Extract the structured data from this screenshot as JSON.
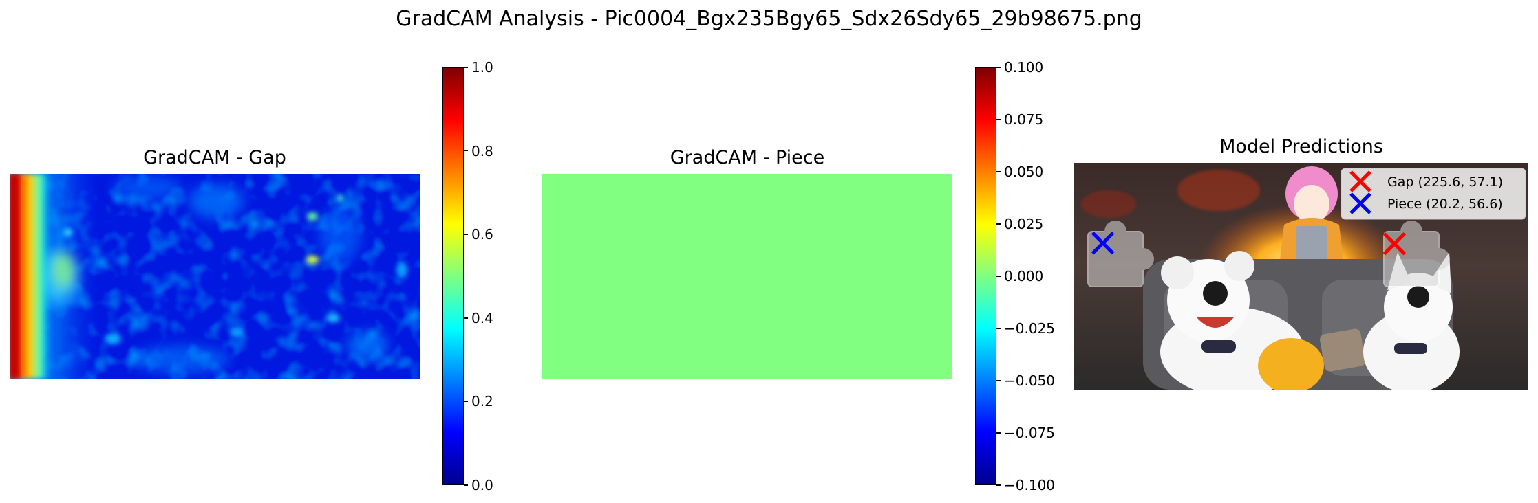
{
  "figure": {
    "title": "GradCAM Analysis - Pic0004_Bgx235Bgy65_Sdx26Sdy65_29b98675.png"
  },
  "panels": {
    "gap": {
      "title": "GradCAM - Gap"
    },
    "piece": {
      "title": "GradCAM - Piece",
      "fill_color": "#80ff80"
    },
    "predictions": {
      "title": "Model Predictions",
      "legend": [
        {
          "label": "Gap (225.6, 57.1)",
          "color": "#ff0000"
        },
        {
          "label": "Piece (20.2, 56.6)",
          "color": "#0000ff"
        }
      ]
    }
  },
  "colorbars": {
    "gap": {
      "ticks": [
        "1.0",
        "0.8",
        "0.6",
        "0.4",
        "0.2",
        "0.0"
      ]
    },
    "piece": {
      "ticks": [
        "0.100",
        "0.075",
        "0.050",
        "0.025",
        "0.000",
        "−0.025",
        "−0.050",
        "−0.075",
        "−0.100"
      ]
    }
  },
  "chart_data": [
    {
      "type": "heatmap",
      "title": "GradCAM - Gap",
      "colormap": "jet",
      "clim": [
        0.0,
        1.0
      ],
      "colorbar_ticks": [
        1.0,
        0.8,
        0.6,
        0.4,
        0.2,
        0.0
      ],
      "description_values": {
        "left_edge_max": 1.0,
        "background_level": 0.15
      }
    },
    {
      "type": "heatmap",
      "title": "GradCAM - Piece",
      "colormap": "jet",
      "clim": [
        -0.1,
        0.1
      ],
      "colorbar_ticks": [
        0.1,
        0.075,
        0.05,
        0.025,
        0.0,
        -0.025,
        -0.05,
        -0.075,
        -0.1
      ],
      "uniform_value": 0.0
    },
    {
      "type": "scatter",
      "title": "Model Predictions",
      "image_extent": [
        0,
        320
      ],
      "image_height": 160,
      "series": [
        {
          "name": "Gap (225.6, 57.1)",
          "marker": "x",
          "color": "#ff0000",
          "x": [
            225.6
          ],
          "y": [
            57.1
          ]
        },
        {
          "name": "Piece (20.2, 56.6)",
          "marker": "x",
          "color": "#0000ff",
          "x": [
            20.2
          ],
          "y": [
            56.6
          ]
        }
      ]
    }
  ]
}
